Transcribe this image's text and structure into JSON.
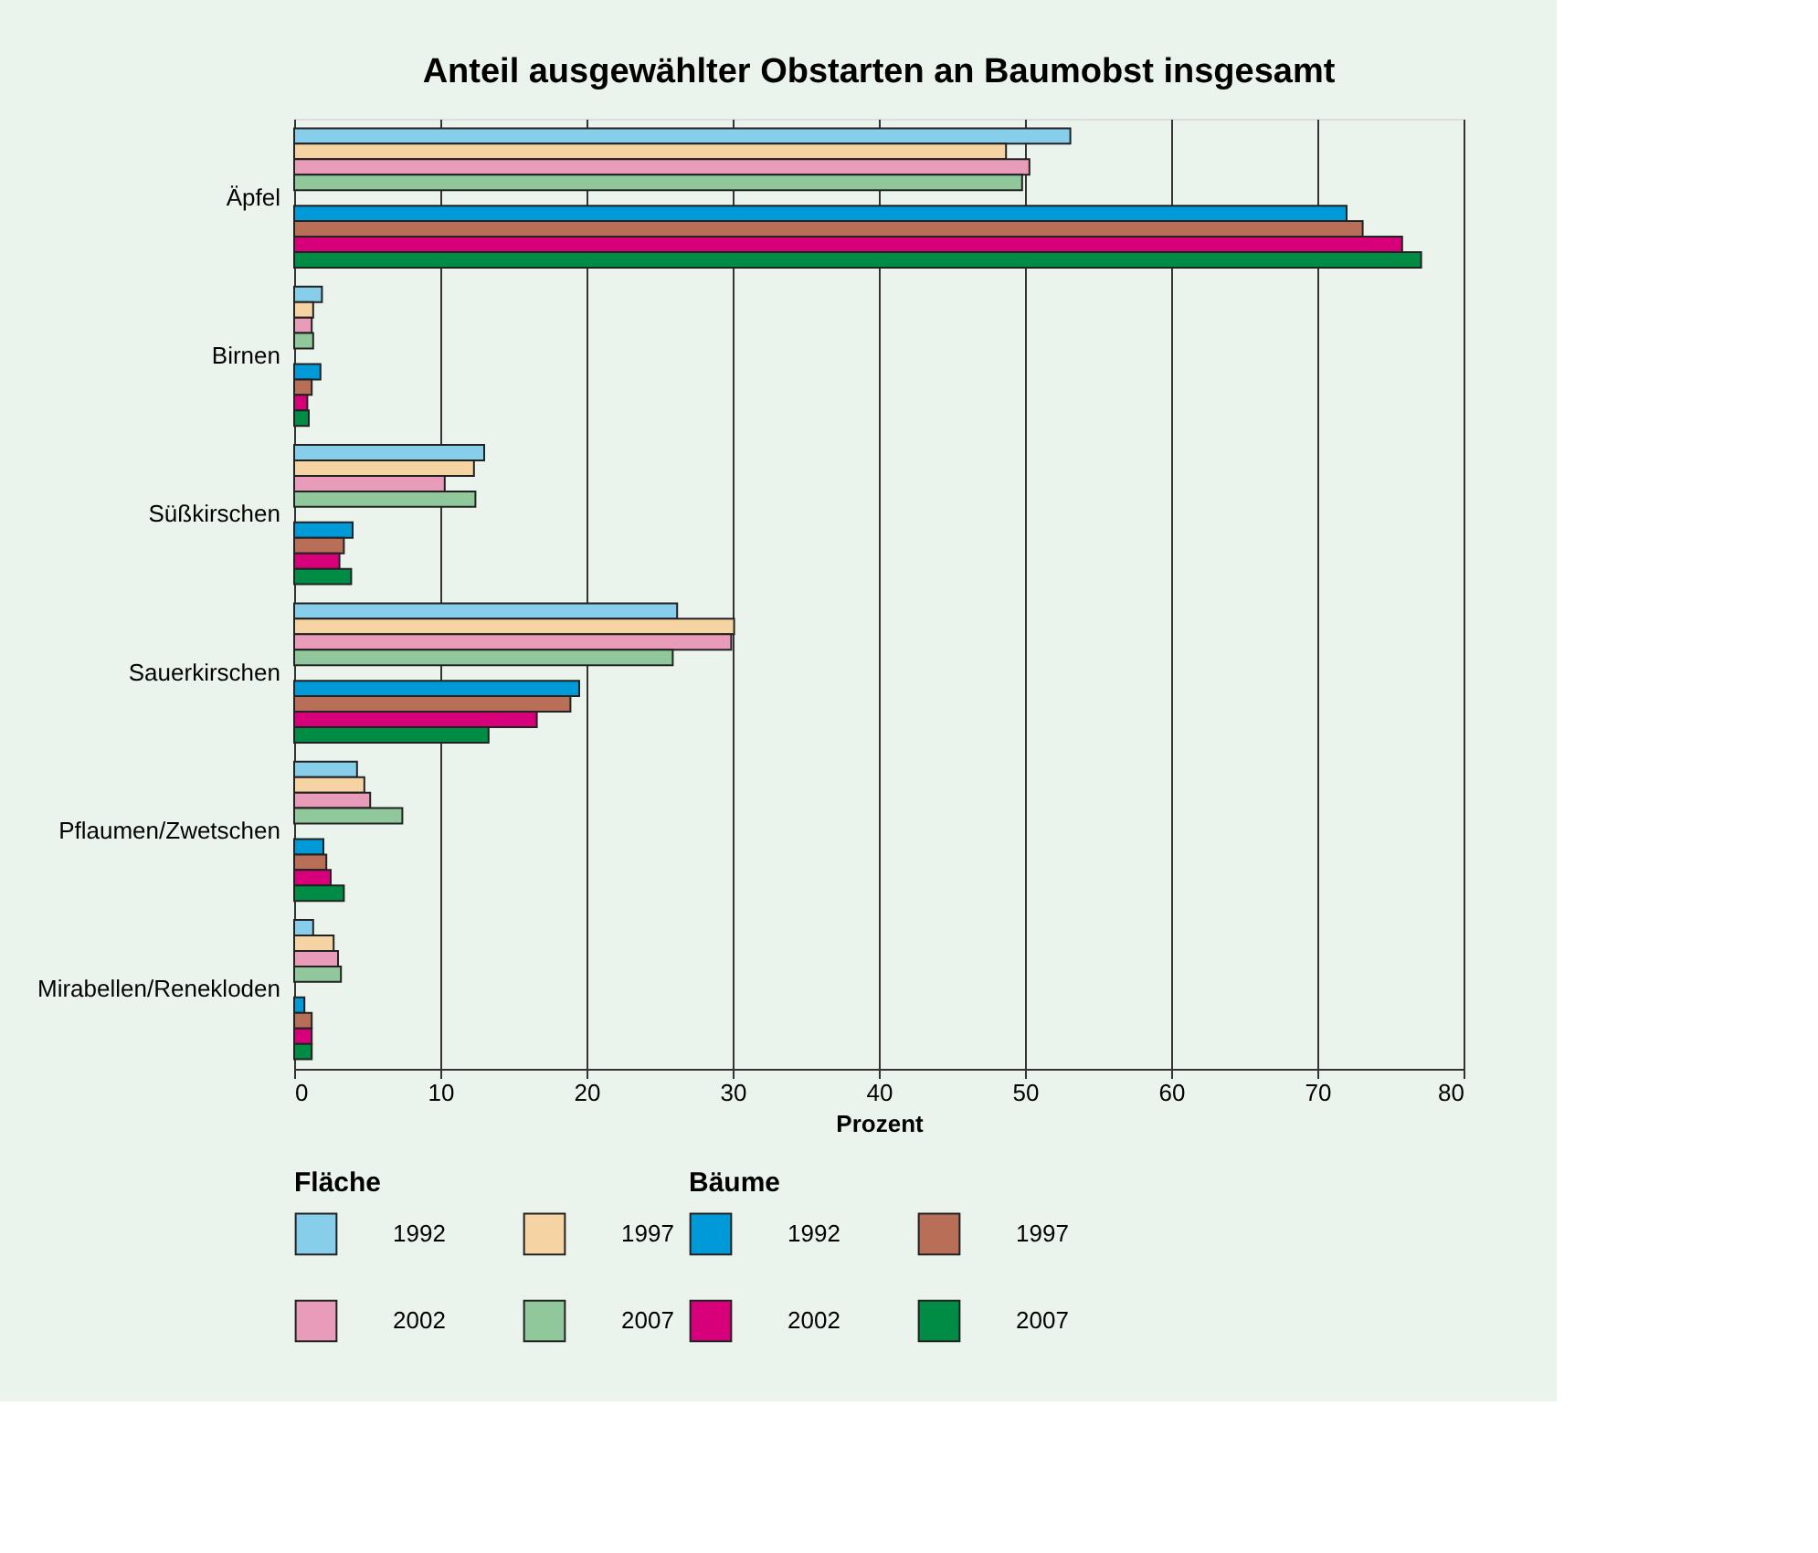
{
  "chart_data": {
    "type": "bar",
    "orientation": "horizontal",
    "title": "Anteil ausgewählter Obstarten an Baumobst insgesamt",
    "xlabel": "Prozent",
    "categories": [
      "Äpfel",
      "Birnen",
      "Süßkirschen",
      "Sauerkirschen",
      "Pflaumen/Zwetschen",
      "Mirabellen/Renekloden"
    ],
    "legend_title": [
      "Fläche",
      "Bäume"
    ],
    "series": [
      {
        "name": "1992",
        "color": "#87ceeb",
        "values": [
          53.1,
          1.9,
          13.0,
          26.2,
          4.3,
          1.3
        ]
      },
      {
        "name": "1997",
        "color": "#f5d3a3",
        "values": [
          48.7,
          1.3,
          12.3,
          30.1,
          4.8,
          2.7
        ]
      },
      {
        "name": "2002",
        "color": "#e89cba",
        "values": [
          50.3,
          1.2,
          10.3,
          29.9,
          5.2,
          3.0
        ]
      },
      {
        "name": "2007",
        "color": "#91c89b",
        "values": [
          49.8,
          1.3,
          12.4,
          25.9,
          7.4,
          3.2
        ]
      },
      {
        "name": "1992",
        "color": "#009ad8",
        "values": [
          72.0,
          1.8,
          4.0,
          19.5,
          2.0,
          0.7
        ]
      },
      {
        "name": "1997",
        "color": "#b96e58",
        "values": [
          73.1,
          1.2,
          3.4,
          18.9,
          2.2,
          1.2
        ]
      },
      {
        "name": "2002",
        "color": "#d8007a",
        "values": [
          75.8,
          0.9,
          3.1,
          16.6,
          2.5,
          1.2
        ]
      },
      {
        "name": "2007",
        "color": "#008c44",
        "values": [
          77.1,
          1.0,
          3.9,
          13.3,
          3.4,
          1.2
        ]
      }
    ],
    "xlim": [
      0,
      80
    ],
    "xticks": [
      0,
      10,
      20,
      30,
      40,
      50,
      60,
      70,
      80
    ],
    "grid": "x",
    "legend": "bottom"
  }
}
